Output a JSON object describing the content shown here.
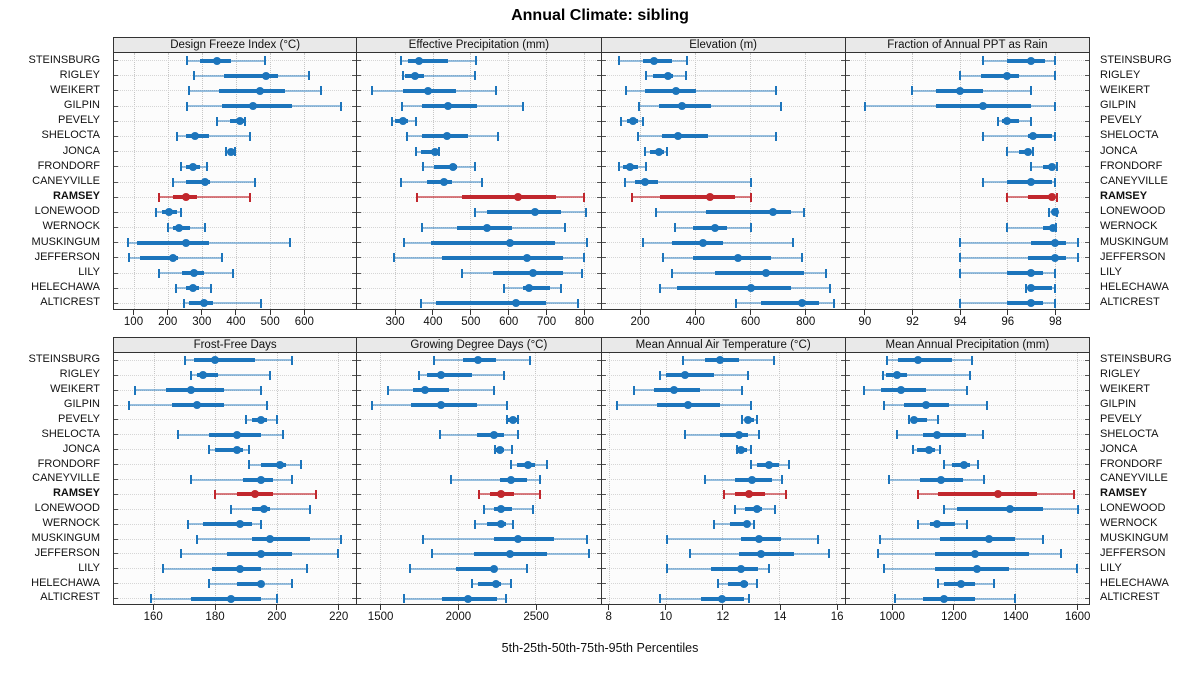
{
  "title": "Annual Climate: sibling",
  "caption": "5th-25th-50th-75th-95th Percentiles",
  "highlight_site": "RAMSEY",
  "colors": {
    "series": "#1c75bc",
    "series_light": "rgba(28,117,188,0.45)",
    "highlight": "#c1272d",
    "highlight_light": "rgba(193,39,45,0.6)",
    "strip_bg": "#e9e9e9",
    "panel_border": "#333333",
    "gridline": "#c6c6c6"
  },
  "chart_data": {
    "type": "dotplot-percentiles",
    "layout": "2 rows x 4 columns lattice, shared site axis, labels both sides",
    "percentiles": [
      5,
      25,
      50,
      75,
      95
    ],
    "legend": "thin line = 5th-95th, thick bar = 25th-75th, dot = median; RAMSEY highlighted red",
    "sites": [
      "STEINSBURG",
      "RIGLEY",
      "WEIKERT",
      "GILPIN",
      "PEVELY",
      "SHELOCTA",
      "JONCA",
      "FRONDORF",
      "CANEYVILLE",
      "RAMSEY",
      "LONEWOOD",
      "WERNOCK",
      "MUSKINGUM",
      "JEFFERSON",
      "LILY",
      "HELECHAWA",
      "ALTICREST"
    ],
    "panels": [
      {
        "title": "Design Freeze Index (°C)",
        "xlim": [
          40,
          755
        ],
        "ticks": [
          100,
          200,
          300,
          400,
          500,
          600
        ],
        "values": {
          "STEINSBURG": [
            255,
            295,
            345,
            385,
            485
          ],
          "RIGLEY": [
            275,
            365,
            490,
            525,
            615
          ],
          "WEIKERT": [
            260,
            350,
            470,
            545,
            650
          ],
          "GILPIN": [
            255,
            360,
            450,
            565,
            710
          ],
          "PEVELY": [
            343,
            382,
            413,
            423,
            428
          ],
          "SHELOCTA": [
            225,
            252,
            280,
            320,
            440
          ],
          "JONCA": [
            370,
            377,
            385,
            392,
            398
          ],
          "FRONDORF": [
            238,
            252,
            273,
            294,
            315
          ],
          "CANEYVILLE": [
            213,
            252,
            310,
            322,
            455
          ],
          "RAMSEY": [
            172,
            215,
            252,
            285,
            440
          ],
          "LONEWOOD": [
            165,
            183,
            203,
            227,
            238
          ],
          "WERNOCK": [
            200,
            213,
            232,
            265,
            310
          ],
          "MUSKINGUM": [
            80,
            108,
            252,
            320,
            560
          ],
          "JEFFERSON": [
            83,
            118,
            215,
            230,
            358
          ],
          "LILY": [
            172,
            240,
            276,
            307,
            392
          ],
          "HELECHAWA": [
            223,
            252,
            273,
            290,
            325
          ],
          "ALTICREST": [
            247,
            262,
            305,
            333,
            475
          ]
        }
      },
      {
        "title": "Effective Precipitation (mm)",
        "xlim": [
          200,
          845
        ],
        "ticks": [
          300,
          400,
          500,
          600,
          700,
          800
        ],
        "values": {
          "STEINSBURG": [
            315,
            335,
            365,
            440,
            515
          ],
          "RIGLEY": [
            322,
            327,
            352,
            377,
            513
          ],
          "WEIKERT": [
            240,
            322,
            387,
            463,
            568
          ],
          "GILPIN": [
            318,
            372,
            441,
            517,
            640
          ],
          "PEVELY": [
            291,
            299,
            322,
            335,
            357
          ],
          "SHELOCTA": [
            331,
            372,
            438,
            495,
            574
          ],
          "JONCA": [
            355,
            370,
            405,
            412,
            418
          ],
          "FRONDORF": [
            374,
            403,
            455,
            465,
            511
          ],
          "CANEYVILLE": [
            315,
            384,
            431,
            451,
            530
          ],
          "RAMSEY": [
            359,
            477,
            627,
            728,
            800
          ],
          "LONEWOOD": [
            511,
            544,
            671,
            741,
            807
          ],
          "WERNOCK": [
            372,
            465,
            545,
            610,
            750
          ],
          "MUSKINGUM": [
            325,
            395,
            605,
            725,
            810
          ],
          "JEFFERSON": [
            297,
            425,
            650,
            745,
            800
          ],
          "LILY": [
            478,
            560,
            665,
            745,
            795
          ],
          "HELECHAWA": [
            590,
            640,
            655,
            710,
            740
          ],
          "ALTICREST": [
            370,
            410,
            620,
            700,
            785
          ]
        }
      },
      {
        "title": "Elevation (m)",
        "xlim": [
          60,
          945
        ],
        "ticks": [
          200,
          400,
          600,
          800
        ],
        "values": {
          "STEINSBURG": [
            125,
            210,
            252,
            315,
            370
          ],
          "RIGLEY": [
            222,
            248,
            303,
            320,
            367
          ],
          "WEIKERT": [
            150,
            218,
            330,
            405,
            695
          ],
          "GILPIN": [
            198,
            270,
            352,
            460,
            712
          ],
          "PEVELY": [
            131,
            152,
            176,
            192,
            210
          ],
          "SHELOCTA": [
            192,
            279,
            340,
            448,
            695
          ],
          "JONCA": [
            218,
            236,
            270,
            288,
            297
          ],
          "FRONDORF": [
            124,
            139,
            164,
            192,
            222
          ],
          "CANEYVILLE": [
            145,
            182,
            218,
            267,
            605
          ],
          "RAMSEY": [
            170,
            273,
            455,
            545,
            605
          ],
          "LONEWOOD": [
            260,
            440,
            685,
            750,
            795
          ],
          "WERNOCK": [
            327,
            394,
            473,
            515,
            605
          ],
          "MUSKINGUM": [
            212,
            315,
            430,
            503,
            755
          ],
          "JEFFERSON": [
            285,
            394,
            558,
            675,
            790
          ],
          "LILY": [
            318,
            473,
            660,
            795,
            875
          ],
          "HELECHAWA": [
            273,
            333,
            604,
            750,
            890
          ],
          "ALTICREST": [
            550,
            640,
            790,
            850,
            905
          ]
        }
      },
      {
        "title": "Fraction of Annual PPT as Rain",
        "xlim": [
          89.2,
          99.45
        ],
        "ticks": [
          90,
          92,
          94,
          96,
          98
        ],
        "values": {
          "STEINSBURG": [
            95.0,
            96.0,
            97.0,
            97.6,
            98.0
          ],
          "RIGLEY": [
            94.0,
            94.9,
            96.0,
            96.5,
            98.0
          ],
          "WEIKERT": [
            92.0,
            93.0,
            94.0,
            95.0,
            97.0
          ],
          "GILPIN": [
            90.0,
            93.0,
            95.0,
            97.0,
            98.0
          ],
          "PEVELY": [
            95.6,
            95.8,
            96.0,
            96.5,
            97.0
          ],
          "SHELOCTA": [
            95.0,
            96.9,
            97.1,
            97.9,
            98.0
          ],
          "JONCA": [
            96.0,
            96.5,
            96.9,
            97.0,
            97.1
          ],
          "FRONDORF": [
            97.0,
            97.5,
            97.9,
            98.0,
            98.1
          ],
          "CANEYVILLE": [
            95.0,
            96.0,
            97.0,
            97.9,
            98.0
          ],
          "RAMSEY": [
            96.0,
            96.9,
            97.9,
            98.0,
            98.1
          ],
          "LONEWOOD": [
            97.75,
            97.9,
            98.0,
            98.05,
            98.1
          ],
          "WERNOCK": [
            96.0,
            97.5,
            97.95,
            98.0,
            98.05
          ],
          "MUSKINGUM": [
            94.0,
            97.0,
            98.0,
            98.5,
            99.0
          ],
          "JEFFERSON": [
            94.0,
            96.9,
            98.0,
            98.5,
            99.0
          ],
          "LILY": [
            94.0,
            96.0,
            97.0,
            97.5,
            98.0
          ],
          "HELECHAWA": [
            96.8,
            96.9,
            97.0,
            97.9,
            98.0
          ],
          "ALTICREST": [
            94.0,
            96.0,
            97.0,
            97.5,
            98.0
          ]
        }
      },
      {
        "title": "Frost-Free Days",
        "xlim": [
          147,
          226
        ],
        "ticks": [
          160,
          180,
          200,
          220
        ],
        "values": {
          "STEINSBURG": [
            170,
            173,
            180,
            193,
            205
          ],
          "RIGLEY": [
            172,
            174,
            176,
            181,
            198
          ],
          "WEIKERT": [
            154,
            164,
            172,
            183,
            195
          ],
          "GILPIN": [
            152,
            166,
            174,
            183,
            197
          ],
          "PEVELY": [
            190,
            192,
            195,
            197,
            200
          ],
          "SHELOCTA": [
            168,
            178,
            187,
            195,
            202
          ],
          "JONCA": [
            178,
            180,
            187,
            189,
            191
          ],
          "FRONDORF": [
            191,
            195,
            201,
            203,
            208
          ],
          "CANEYVILLE": [
            172,
            189,
            195,
            199,
            205
          ],
          "RAMSEY": [
            180,
            187,
            193,
            199,
            213
          ],
          "LONEWOOD": [
            185,
            192,
            196,
            198,
            211
          ],
          "WERNOCK": [
            171,
            176,
            188,
            192,
            195
          ],
          "MUSKINGUM": [
            174,
            192,
            198,
            211,
            221
          ],
          "JEFFERSON": [
            169,
            184,
            195,
            205,
            220
          ],
          "LILY": [
            163,
            179,
            188,
            195,
            210
          ],
          "HELECHAWA": [
            178,
            187,
            195,
            196,
            205
          ],
          "ALTICREST": [
            159,
            172,
            185,
            195,
            200
          ]
        }
      },
      {
        "title": "Growing Degree Days (°C)",
        "xlim": [
          1350,
          2920
        ],
        "ticks": [
          1500,
          2000,
          2500
        ],
        "values": {
          "STEINSBURG": [
            1845,
            2030,
            2130,
            2245,
            2465
          ],
          "RIGLEY": [
            1750,
            1800,
            1890,
            2090,
            2300
          ],
          "WEIKERT": [
            1550,
            1710,
            1790,
            1940,
            2230
          ],
          "GILPIN": [
            1445,
            1700,
            1890,
            2120,
            2315
          ],
          "PEVELY": [
            2315,
            2325,
            2355,
            2380,
            2390
          ],
          "SHELOCTA": [
            1885,
            2120,
            2230,
            2295,
            2390
          ],
          "JONCA": [
            2240,
            2245,
            2270,
            2300,
            2350
          ],
          "FRONDORF": [
            2340,
            2380,
            2450,
            2500,
            2575
          ],
          "CANEYVILLE": [
            1955,
            2270,
            2340,
            2445,
            2530
          ],
          "RAMSEY": [
            2135,
            2205,
            2280,
            2360,
            2530
          ],
          "LONEWOOD": [
            2165,
            2230,
            2280,
            2350,
            2485
          ],
          "WERNOCK": [
            2110,
            2185,
            2275,
            2310,
            2355
          ],
          "MUSKINGUM": [
            1775,
            2235,
            2385,
            2620,
            2835
          ],
          "JEFFERSON": [
            1835,
            2105,
            2335,
            2575,
            2845
          ],
          "LILY": [
            1690,
            1985,
            2230,
            2255,
            2445
          ],
          "HELECHAWA": [
            2090,
            2130,
            2245,
            2275,
            2345
          ],
          "ALTICREST": [
            1650,
            1895,
            2065,
            2255,
            2310
          ]
        }
      },
      {
        "title": "Mean Annual Air Temperature (°C)",
        "xlim": [
          7.75,
          16.3
        ],
        "ticks": [
          8,
          10,
          12,
          14,
          16
        ],
        "values": {
          "STEINSBURG": [
            10.6,
            11.4,
            11.9,
            12.6,
            13.8
          ],
          "RIGLEY": [
            9.8,
            10.0,
            10.7,
            11.7,
            12.9
          ],
          "WEIKERT": [
            8.9,
            9.6,
            10.3,
            11.2,
            12.7
          ],
          "GILPIN": [
            8.3,
            9.7,
            10.8,
            11.9,
            13.0
          ],
          "PEVELY": [
            12.7,
            12.8,
            12.9,
            13.1,
            13.2
          ],
          "SHELOCTA": [
            10.7,
            11.9,
            12.6,
            12.9,
            13.3
          ],
          "JONCA": [
            12.5,
            12.55,
            12.65,
            12.85,
            13.0
          ],
          "FRONDORF": [
            13.0,
            13.2,
            13.65,
            14.0,
            14.35
          ],
          "CANEYVILLE": [
            11.4,
            12.45,
            13.05,
            13.75,
            14.1
          ],
          "RAMSEY": [
            12.05,
            12.45,
            12.95,
            13.5,
            14.25
          ],
          "LONEWOOD": [
            12.45,
            12.8,
            13.2,
            13.4,
            13.85
          ],
          "WERNOCK": [
            11.7,
            12.25,
            12.85,
            12.95,
            13.1
          ],
          "MUSKINGUM": [
            10.05,
            12.65,
            13.3,
            14.05,
            15.35
          ],
          "JEFFERSON": [
            10.85,
            12.6,
            13.35,
            14.5,
            15.75
          ],
          "LILY": [
            10.05,
            11.6,
            12.65,
            13.25,
            13.65
          ],
          "HELECHAWA": [
            11.85,
            12.2,
            12.75,
            12.9,
            13.2
          ],
          "ALTICREST": [
            9.8,
            11.25,
            12.0,
            12.75,
            12.95
          ]
        }
      },
      {
        "title": "Mean Annual Precipitation (mm)",
        "xlim": [
          850,
          1640
        ],
        "ticks": [
          1000,
          1200,
          1400,
          1600
        ],
        "values": {
          "STEINSBURG": [
            985,
            1020,
            1085,
            1195,
            1260
          ],
          "RIGLEY": [
            970,
            980,
            1015,
            1050,
            1255
          ],
          "WEIKERT": [
            910,
            965,
            1030,
            1110,
            1245
          ],
          "GILPIN": [
            975,
            1040,
            1110,
            1185,
            1310
          ],
          "PEVELY": [
            1055,
            1062,
            1072,
            1115,
            1150
          ],
          "SHELOCTA": [
            1015,
            1100,
            1145,
            1240,
            1295
          ],
          "JONCA": [
            1070,
            1082,
            1120,
            1140,
            1155
          ],
          "FRONDORF": [
            1170,
            1195,
            1235,
            1255,
            1280
          ],
          "CANEYVILLE": [
            990,
            1090,
            1160,
            1230,
            1300
          ],
          "RAMSEY": [
            1085,
            1150,
            1345,
            1470,
            1590
          ],
          "LONEWOOD": [
            1170,
            1210,
            1385,
            1490,
            1605
          ],
          "WERNOCK": [
            1085,
            1125,
            1147,
            1205,
            1245
          ],
          "MUSKINGUM": [
            960,
            1155,
            1315,
            1400,
            1490
          ],
          "JEFFERSON": [
            955,
            1140,
            1270,
            1445,
            1550
          ],
          "LILY": [
            975,
            1140,
            1275,
            1380,
            1600
          ],
          "HELECHAWA": [
            1150,
            1170,
            1225,
            1270,
            1330
          ],
          "ALTICREST": [
            1010,
            1100,
            1170,
            1270,
            1400
          ]
        }
      }
    ]
  }
}
